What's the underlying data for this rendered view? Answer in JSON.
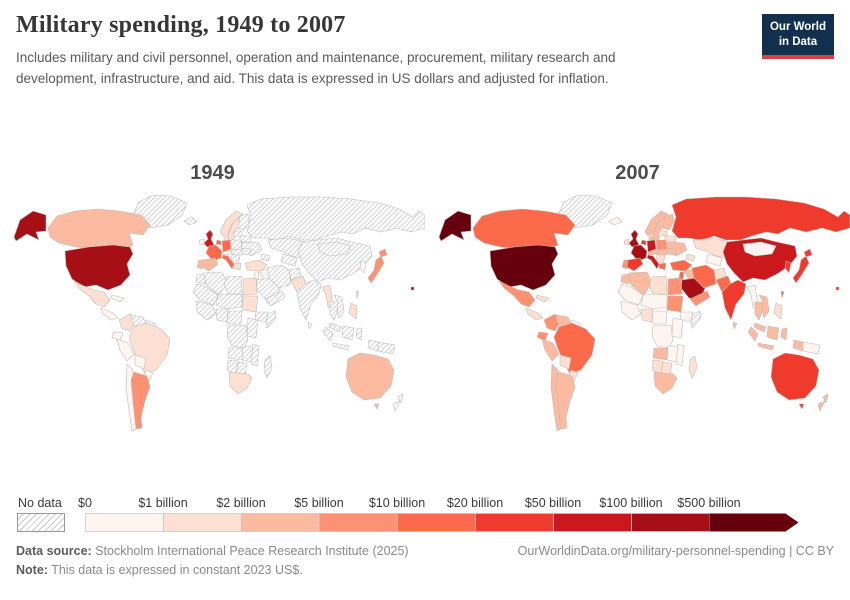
{
  "header": {
    "title": "Military spending, 1949 to 2007",
    "subtitle": "Includes military and civil personnel, operation and maintenance, procurement, military research and development, infrastructure, and aid. This data is expressed in US dollars and adjusted for inflation.",
    "logo": {
      "line1": "Our World",
      "line2": "in Data",
      "bg": "#12304e",
      "accent": "#dc3e42"
    }
  },
  "maps": [
    {
      "year_label": "1949"
    },
    {
      "year_label": "2007"
    }
  ],
  "legend": {
    "no_data_label": "No data",
    "stops": [
      "$0",
      "$1 billion",
      "$2 billion",
      "$5 billion",
      "$10 billion",
      "$20 billion",
      "$50 billion",
      "$100 billion",
      "$500 billion"
    ],
    "colors": [
      "#fff5f0",
      "#fee0d2",
      "#fcbba1",
      "#fc9272",
      "#fb6a4a",
      "#ef3b2c",
      "#cb181d",
      "#a50f15",
      "#67000d"
    ]
  },
  "footer": {
    "source_label": "Data source:",
    "source_value": "Stockholm International Peace Research Institute (2025)",
    "url": "OurWorldinData.org/military-personnel-spending | CC BY",
    "note_label": "Note:",
    "note_value": "This data is expressed in constant 2023 US$."
  },
  "chart_data": {
    "type": "choropleth",
    "title": "Military spending, 1949 to 2007",
    "unit": "US dollars, constant 2023 US$",
    "bin_labels": [
      "$0",
      "$1 billion",
      "$2 billion",
      "$5 billion",
      "$10 billion",
      "$20 billion",
      "$50 billion",
      "$100 billion",
      "$500 billion"
    ],
    "bin_ranges": [
      "$0-1B",
      "$1-2B",
      "$2-5B",
      "$5-10B",
      "$10-20B",
      "$20-50B",
      "$50-100B",
      "$100-500B",
      "$500B+"
    ],
    "bin_colors": [
      "#fff5f0",
      "#fee0d2",
      "#fcbba1",
      "#fc9272",
      "#fb6a4a",
      "#ef3b2c",
      "#cb181d",
      "#a50f15",
      "#67000d"
    ],
    "no_data_code": "nd",
    "years": {
      "1949": {
        "greenland": "nd",
        "alaska": "b7",
        "canada": "b2",
        "usa": "b7",
        "mexico": "b1",
        "central-america": "b0",
        "cuba": "b0",
        "colombia": "b1",
        "venezuela": "nd",
        "guyanas": "nd",
        "ecuador": "b0",
        "peru": "b0",
        "brazil": "b1",
        "bolivia": "b0",
        "paraguay-uruguay": "b0",
        "chile": "b0",
        "argentina": "b3",
        "iceland": "nd",
        "ireland": "b0",
        "uk": "b6",
        "norway": "b1",
        "sweden": "b1",
        "finland": "nd",
        "denmark": "b1",
        "baltics": "nd",
        "belarus": "nd",
        "poland": "nd",
        "germany": "b4",
        "benelux": "b4",
        "france": "b4",
        "portugal": "b2",
        "spain": "b2",
        "central-europe": "b0",
        "czech-hungary": "nd",
        "italy": "b4",
        "balkans": "nd",
        "greece": "b1",
        "ukraine": "nd",
        "romania": "nd",
        "russia": "nd",
        "kazakhstan": "nd",
        "central-asia": "nd",
        "caucasus": "nd",
        "turkey": "b1",
        "syria-iraq": "b0",
        "israel-jordan": "b0",
        "saudi": "nd",
        "yemen-oman": "nd",
        "iran": "nd",
        "afghanistan": "nd",
        "pakistan": "b1",
        "india": "nd",
        "sri-lanka": "b0",
        "china": "nd",
        "mongolia": "nd",
        "myanmar": "b1",
        "thailand": "nd",
        "vietnam": "nd",
        "malaysia": "nd",
        "sumatra": "nd",
        "java": "nd",
        "borneo": "nd",
        "sulawesi": "nd",
        "indonesia-papua": "nd",
        "png": "nd",
        "philippines": "b1",
        "korea": "b0",
        "japan": "b3",
        "taiwan": "b1",
        "morocco": "nd",
        "algeria": "nd",
        "libya": "nd",
        "egypt": "b1",
        "mauritania-mali": "nd",
        "niger-chad": "nd",
        "west-africa": "nd",
        "nigeria": "nd",
        "sudan": "b1",
        "ethiopia": "nd",
        "somalia": "nd",
        "central-africa": "nd",
        "drc": "nd",
        "kenya-tanzania": "nd",
        "angola": "nd",
        "zambia-zimbabwe": "nd",
        "mozambique": "nd",
        "namibia": "nd",
        "botswana": "nd",
        "south-africa": "b1",
        "madagascar": "nd",
        "australia": "b2",
        "tasmania": "b2",
        "new-zealand": "b0",
        "pacific-territory": "b7"
      },
      "2007": {
        "greenland": "nd",
        "alaska": "b8",
        "canada": "b4",
        "usa": "b8",
        "mexico": "b3",
        "central-america": "b1",
        "cuba": "b1",
        "colombia": "b3",
        "venezuela": "b2",
        "guyanas": "b0",
        "ecuador": "b3",
        "peru": "b2",
        "brazil": "b4",
        "bolivia": "b1",
        "paraguay-uruguay": "b1",
        "chile": "b2",
        "argentina": "b2",
        "iceland": "b0",
        "ireland": "b1",
        "uk": "b7",
        "norway": "b2",
        "sweden": "b2",
        "finland": "b2",
        "denmark": "b2",
        "baltics": "b1",
        "belarus": "b1",
        "poland": "b3",
        "germany": "b6",
        "benelux": "b5",
        "france": "b7",
        "portugal": "b3",
        "spain": "b5",
        "central-europe": "b2",
        "czech-hungary": "b2",
        "italy": "b6",
        "balkans": "b1",
        "greece": "b4",
        "ukraine": "b2",
        "romania": "b2",
        "russia": "b5",
        "kazakhstan": "b1",
        "central-asia": "b0",
        "caucasus": "b1",
        "turkey": "b4",
        "syria-iraq": "b2",
        "israel-jordan": "b4",
        "saudi": "b7",
        "yemen-oman": "b3",
        "iran": "b4",
        "afghanistan": "b1",
        "pakistan": "b4",
        "india": "b5",
        "sri-lanka": "b2",
        "china": "b6",
        "mongolia": "b0",
        "myanmar": "b0",
        "thailand": "b2",
        "vietnam": "b2",
        "malaysia": "b2",
        "sumatra": "b2",
        "java": "b2",
        "borneo": "b2",
        "sulawesi": "b2",
        "indonesia-papua": "b2",
        "png": "b0",
        "philippines": "b1",
        "korea": "b5",
        "japan": "b5",
        "taiwan": "b4",
        "morocco": "b2",
        "algeria": "b2",
        "libya": "b1",
        "egypt": "b3",
        "mauritania-mali": "b0",
        "niger-chad": "b0",
        "west-africa": "b0",
        "nigeria": "b1",
        "sudan": "b3",
        "ethiopia": "b0",
        "somalia": "nd",
        "central-africa": "b0",
        "drc": "b0",
        "kenya-tanzania": "b0",
        "angola": "b2",
        "zambia-zimbabwe": "b0",
        "mozambique": "b0",
        "namibia": "b1",
        "botswana": "b1",
        "south-africa": "b2",
        "madagascar": "b1",
        "australia": "b5",
        "tasmania": "b5",
        "new-zealand": "b2",
        "pacific-territory": "b5"
      }
    }
  }
}
